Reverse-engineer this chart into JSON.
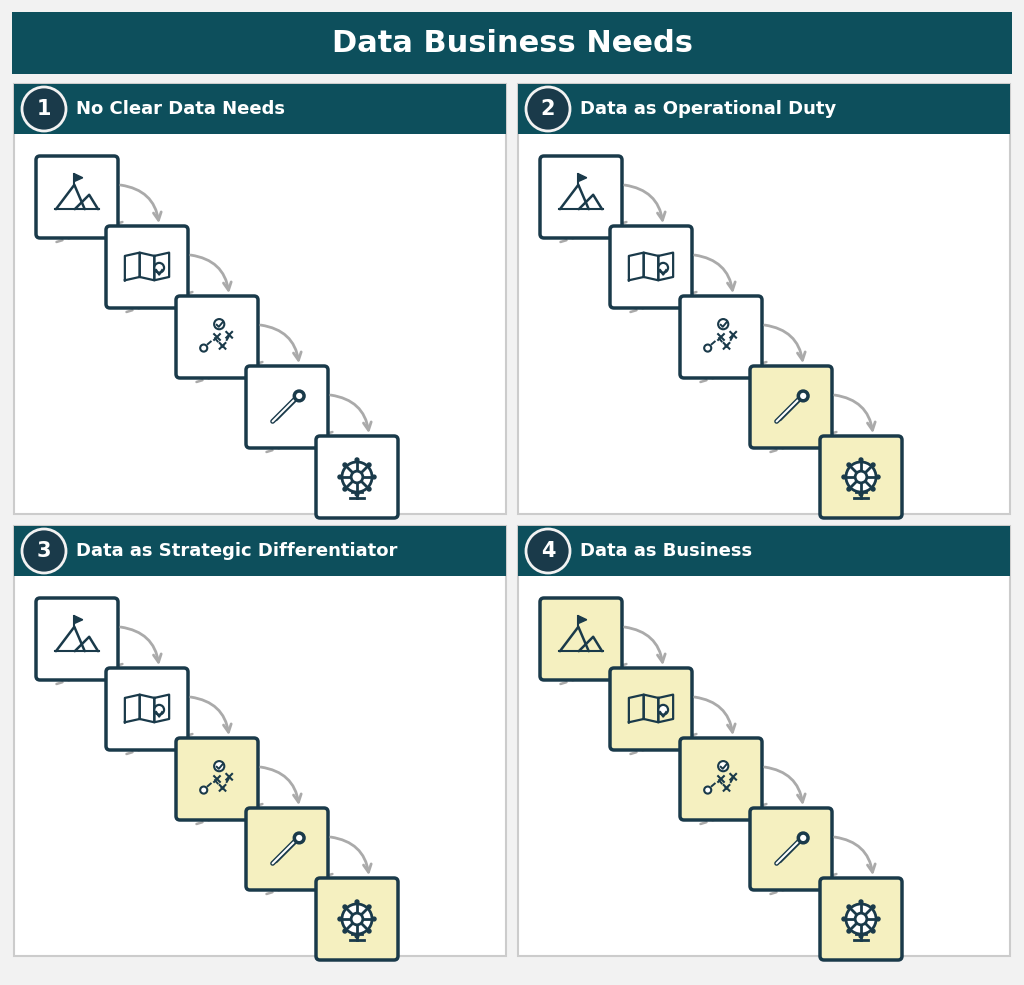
{
  "title": "Data Business Needs",
  "title_bg": "#0d4f5c",
  "title_fg": "#ffffff",
  "bg_color": "#f2f2f2",
  "panel_bg": "#ffffff",
  "panel_border": "#cccccc",
  "header_bg": "#0d4f5c",
  "header_fg": "#ffffff",
  "num_circle_bg": "#1a3a4a",
  "num_circle_fg": "#ffffff",
  "box_normal_bg": "#ffffff",
  "box_normal_border": "#1a3a4a",
  "box_highlight_bg": "#f5f0c0",
  "box_highlight_border": "#1a3a4a",
  "arrow_color": "#aaaaaa",
  "scenarios": [
    {
      "number": "1",
      "label": "No Clear Data Needs",
      "highlighted": []
    },
    {
      "number": "2",
      "label": "Data as Operational Duty",
      "highlighted": [
        3,
        4
      ]
    },
    {
      "number": "3",
      "label": "Data as Strategic Differentiator",
      "highlighted": [
        2,
        3,
        4
      ]
    },
    {
      "number": "4",
      "label": "Data as Business",
      "highlighted": [
        0,
        1,
        2,
        3,
        4
      ]
    }
  ]
}
